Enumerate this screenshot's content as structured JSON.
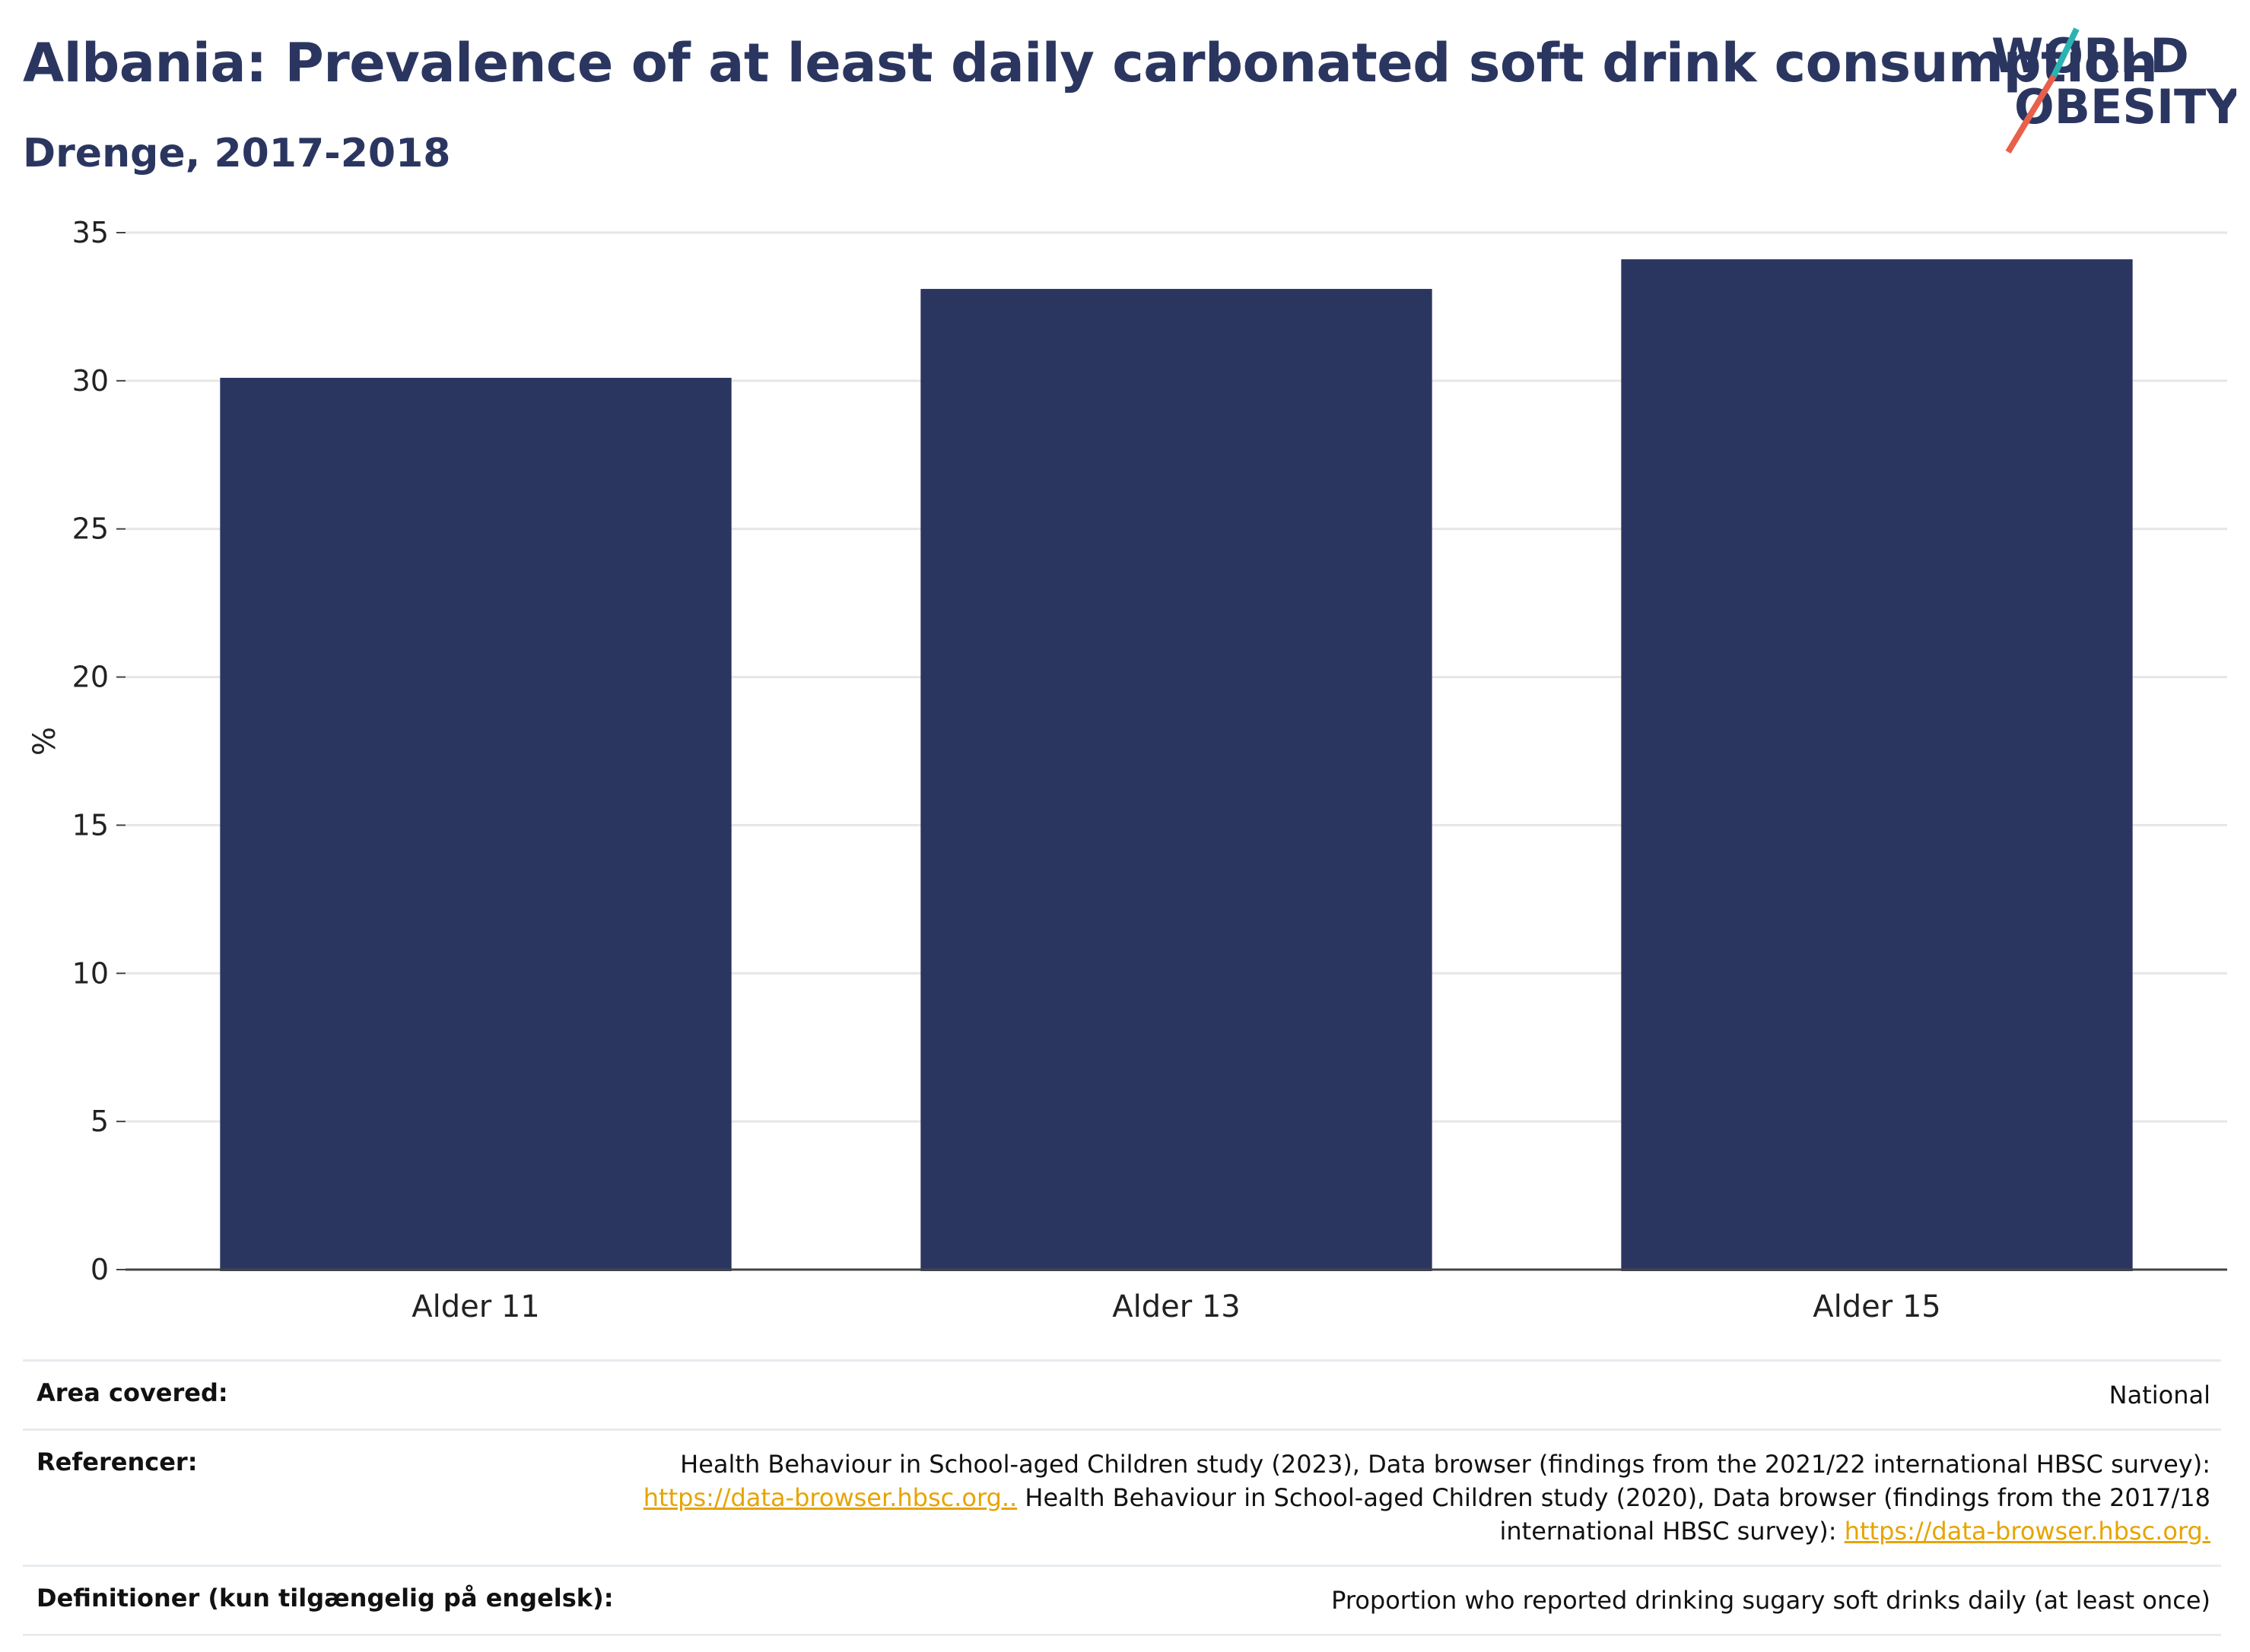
{
  "header": {
    "title": "Albania: Prevalence of at least daily carbonated soft drink consumption",
    "subtitle": "Drenge, 2017-2018"
  },
  "logo": {
    "line1": "WORLD",
    "line2": "OBESITY",
    "accent_teal": "#2bb3b1",
    "accent_red": "#e8604c"
  },
  "chart_data": {
    "type": "bar",
    "categories": [
      "Alder 11",
      "Alder 13",
      "Alder 15"
    ],
    "values": [
      30.1,
      33.1,
      34.1
    ],
    "title": "Albania: Prevalence of at least daily carbonated soft drink consumption",
    "subtitle": "Drenge, 2017-2018",
    "xlabel": "",
    "ylabel": "%",
    "ylim": [
      0,
      35
    ],
    "yticks": [
      0,
      5,
      10,
      15,
      20,
      25,
      30,
      35
    ],
    "grid": true,
    "bar_color": "#2b3660"
  },
  "meta": {
    "area": {
      "label": "Area covered:",
      "value": "National"
    },
    "refs": {
      "label": "Referencer:",
      "text1": "Health Behaviour in School-aged Children study (2023), Data browser (findings from the 2021/22 international HBSC survey):",
      "link1": "https://data-browser.hbsc.org..",
      "text2": " Health Behaviour in School-aged Children study (2020), Data browser (findings from the 2017/18",
      "text3": "international HBSC survey): ",
      "link2": "https://data-browser.hbsc.org."
    },
    "defs": {
      "label": "Definitioner (kun tilgængelig på engelsk):",
      "value": "Proportion who reported drinking sugary soft drinks daily (at least once)"
    }
  }
}
